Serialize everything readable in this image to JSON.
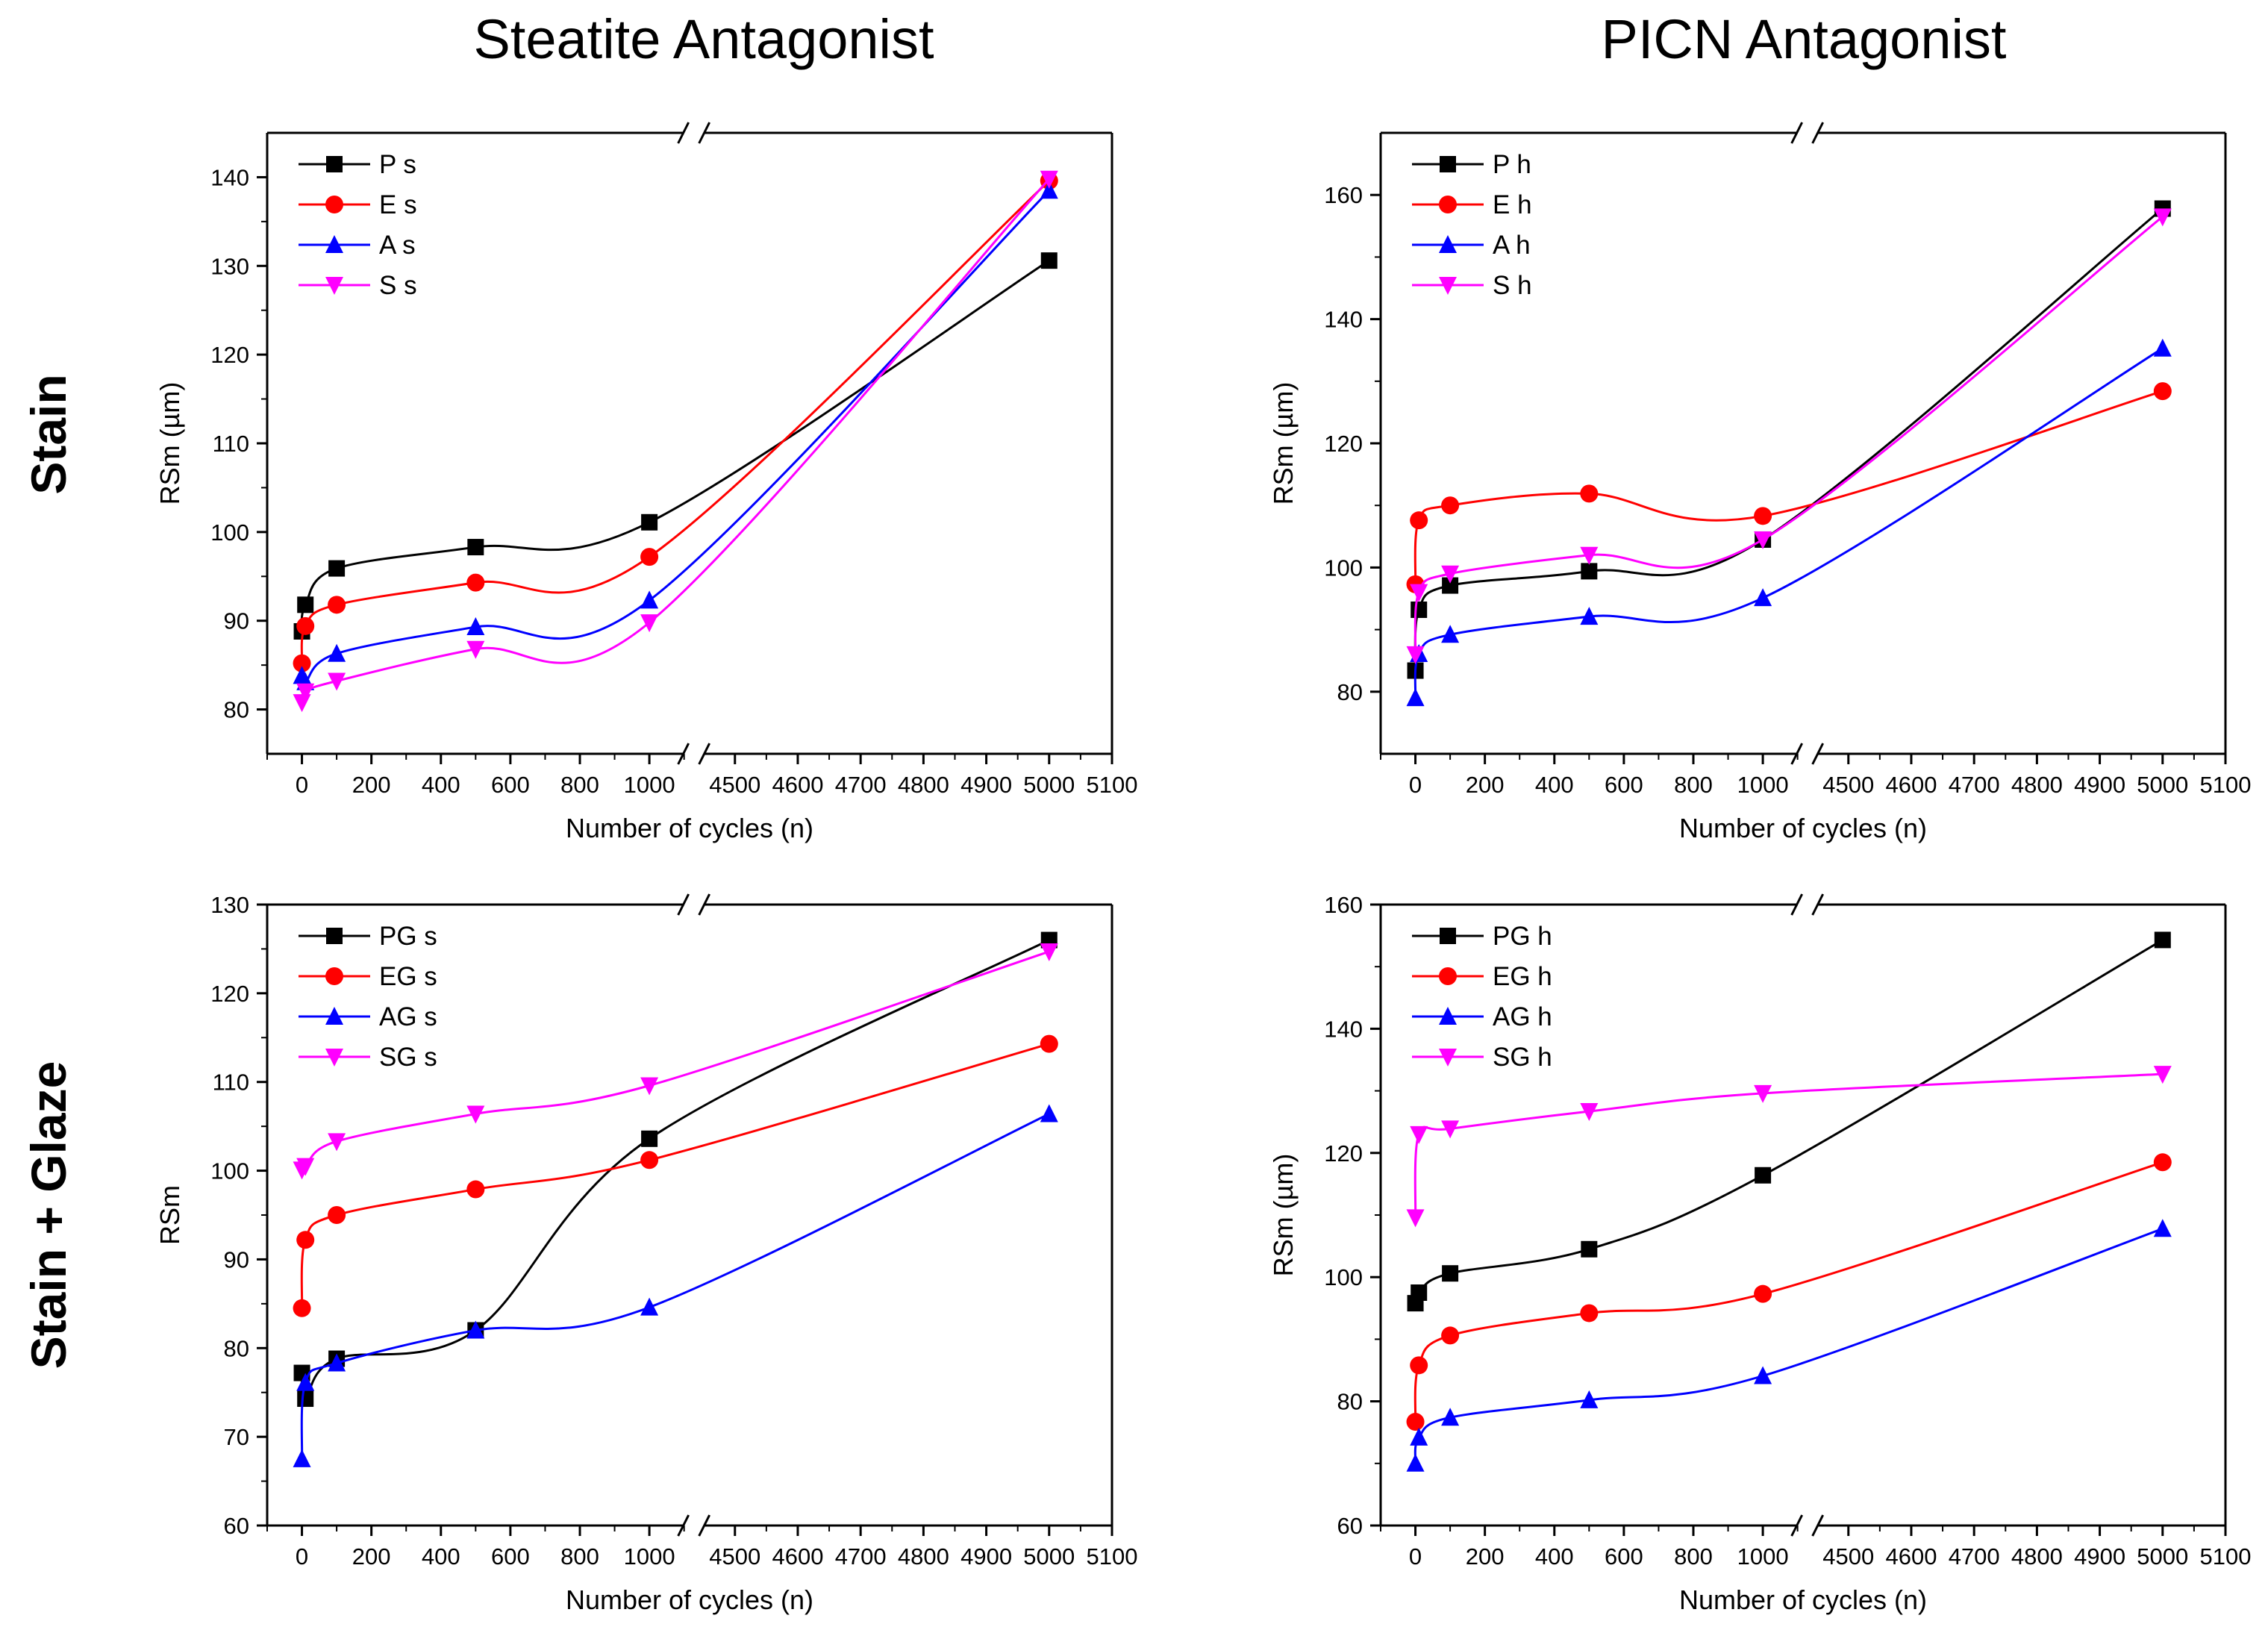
{
  "figure": {
    "column_titles": [
      "Steatite Antagonist",
      "PICN Antagonist"
    ],
    "row_titles": [
      "Stain",
      "Stain + Glaze"
    ]
  },
  "chart_data": [
    {
      "type": "scatter",
      "title": "Steatite Antagonist - Stain",
      "xlabel": "Number of cycles (n)",
      "ylabel": "RSm (µm)",
      "ylim": [
        75,
        145
      ],
      "yticks": [
        80,
        90,
        100,
        110,
        120,
        130,
        140
      ],
      "x_break": {
        "segment1": [
          -100,
          1100
        ],
        "segment2": [
          4450,
          5100
        ]
      },
      "xticks_segment1": [
        0,
        200,
        400,
        600,
        800,
        1000
      ],
      "xticks_segment2": [
        4500,
        4600,
        4700,
        4800,
        4900,
        5000,
        5100
      ],
      "legend_position": "top-left",
      "series": [
        {
          "name": "P s",
          "color": "#000000",
          "marker": "square",
          "x": [
            0,
            10,
            100,
            500,
            1000,
            5000
          ],
          "values": [
            88.8,
            91.8,
            95.9,
            98.3,
            101.1,
            130.6
          ]
        },
        {
          "name": "E s",
          "color": "#ff0000",
          "marker": "circle",
          "x": [
            0,
            10,
            100,
            500,
            1000,
            5000
          ],
          "values": [
            85.2,
            89.4,
            91.8,
            94.3,
            97.2,
            139.6
          ]
        },
        {
          "name": "A s",
          "color": "#0000ff",
          "marker": "triangle-up",
          "x": [
            0,
            10,
            100,
            500,
            1000,
            5000
          ],
          "values": [
            83.8,
            83.1,
            86.3,
            89.3,
            92.3,
            138.5
          ]
        },
        {
          "name": "S s",
          "color": "#ff00ff",
          "marker": "triangle-down",
          "x": [
            0,
            10,
            100,
            500,
            1000,
            5000
          ],
          "values": [
            80.8,
            82.0,
            83.2,
            86.8,
            89.8,
            139.8
          ]
        }
      ]
    },
    {
      "type": "scatter",
      "title": "PICN Antagonist - Stain",
      "xlabel": "Number of cycles (n)",
      "ylabel": "RSm (µm)",
      "ylim": [
        70,
        170
      ],
      "yticks": [
        80,
        100,
        120,
        140,
        160
      ],
      "x_break": {
        "segment1": [
          -100,
          1100
        ],
        "segment2": [
          4450,
          5100
        ]
      },
      "xticks_segment1": [
        0,
        200,
        400,
        600,
        800,
        1000
      ],
      "xticks_segment2": [
        4500,
        4600,
        4700,
        4800,
        4900,
        5000,
        5100
      ],
      "legend_position": "top-left",
      "series": [
        {
          "name": "P h",
          "color": "#000000",
          "marker": "square",
          "x": [
            0,
            10,
            100,
            500,
            1000,
            5000
          ],
          "values": [
            83.4,
            93.2,
            97.1,
            99.4,
            104.5,
            157.8
          ]
        },
        {
          "name": "E h",
          "color": "#ff0000",
          "marker": "circle",
          "x": [
            0,
            10,
            100,
            500,
            1000,
            5000
          ],
          "values": [
            97.3,
            107.6,
            110.0,
            111.9,
            108.3,
            128.4
          ]
        },
        {
          "name": "A h",
          "color": "#0000ff",
          "marker": "triangle-up",
          "x": [
            0,
            10,
            100,
            500,
            1000,
            5000
          ],
          "values": [
            79.0,
            86.1,
            89.2,
            92.1,
            95.1,
            135.3
          ]
        },
        {
          "name": "S h",
          "color": "#ff00ff",
          "marker": "triangle-down",
          "x": [
            0,
            10,
            100,
            500,
            1000,
            5000
          ],
          "values": [
            86.0,
            96.0,
            99.0,
            102.0,
            104.5,
            156.5
          ]
        }
      ]
    },
    {
      "type": "scatter",
      "title": "Steatite Antagonist - Stain + Glaze",
      "xlabel": "Number of cycles (n)",
      "ylabel": "RSm",
      "ylim": [
        60,
        130
      ],
      "yticks": [
        60,
        70,
        80,
        90,
        100,
        110,
        120,
        130
      ],
      "x_break": {
        "segment1": [
          -100,
          1100
        ],
        "segment2": [
          4450,
          5100
        ]
      },
      "xticks_segment1": [
        0,
        200,
        400,
        600,
        800,
        1000
      ],
      "xticks_segment2": [
        4500,
        4600,
        4700,
        4800,
        4900,
        5000,
        5100
      ],
      "legend_position": "top-left",
      "series": [
        {
          "name": "PG s",
          "color": "#000000",
          "marker": "square",
          "x": [
            0,
            10,
            100,
            500,
            1000,
            5000
          ],
          "values": [
            77.2,
            74.3,
            78.8,
            82.0,
            103.6,
            126.0
          ]
        },
        {
          "name": "EG s",
          "color": "#ff0000",
          "marker": "circle",
          "x": [
            0,
            10,
            100,
            500,
            1000,
            5000
          ],
          "values": [
            84.5,
            92.2,
            95.0,
            97.9,
            101.2,
            114.3
          ]
        },
        {
          "name": "AG s",
          "color": "#0000ff",
          "marker": "triangle-up",
          "x": [
            0,
            10,
            100,
            500,
            1000,
            5000
          ],
          "values": [
            67.5,
            76.1,
            78.3,
            82.0,
            84.6,
            106.4
          ]
        },
        {
          "name": "SG s",
          "color": "#ff00ff",
          "marker": "triangle-down",
          "x": [
            0,
            10,
            100,
            500,
            1000,
            5000
          ],
          "values": [
            100.1,
            100.5,
            103.3,
            106.4,
            109.6,
            124.7
          ]
        }
      ]
    },
    {
      "type": "scatter",
      "title": "PICN Antagonist - Stain + Glaze",
      "xlabel": "Number of cycles (n)",
      "ylabel": "RSm (µm)",
      "ylim": [
        60,
        160
      ],
      "yticks": [
        60,
        80,
        100,
        120,
        140,
        160
      ],
      "x_break": {
        "segment1": [
          -100,
          1100
        ],
        "segment2": [
          4450,
          5100
        ]
      },
      "xticks_segment1": [
        0,
        200,
        400,
        600,
        800,
        1000
      ],
      "xticks_segment2": [
        4500,
        4600,
        4700,
        4800,
        4900,
        5000,
        5100
      ],
      "legend_position": "top-left",
      "series": [
        {
          "name": "PG h",
          "color": "#000000",
          "marker": "square",
          "x": [
            0,
            10,
            100,
            500,
            1000,
            5000
          ],
          "values": [
            95.8,
            97.5,
            100.6,
            104.5,
            116.4,
            154.3
          ]
        },
        {
          "name": "EG h",
          "color": "#ff0000",
          "marker": "circle",
          "x": [
            0,
            10,
            100,
            500,
            1000,
            5000
          ],
          "values": [
            76.7,
            85.8,
            90.6,
            94.2,
            97.3,
            118.5
          ]
        },
        {
          "name": "AG h",
          "color": "#0000ff",
          "marker": "triangle-up",
          "x": [
            0,
            10,
            100,
            500,
            1000,
            5000
          ],
          "values": [
            70.0,
            74.2,
            77.4,
            80.2,
            84.1,
            107.8
          ]
        },
        {
          "name": "SG h",
          "color": "#ff00ff",
          "marker": "triangle-down",
          "x": [
            0,
            10,
            100,
            500,
            1000,
            5000
          ],
          "values": [
            109.6,
            123.0,
            123.9,
            126.7,
            129.6,
            132.7
          ]
        }
      ]
    }
  ]
}
